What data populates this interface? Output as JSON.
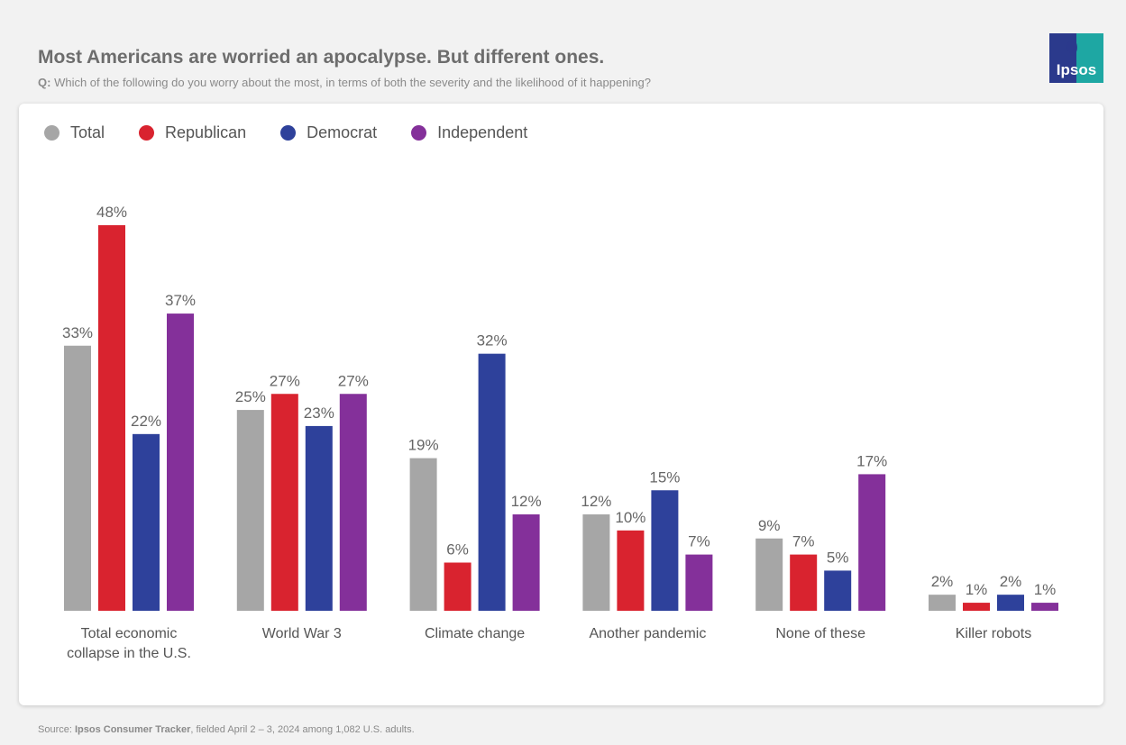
{
  "header": {
    "title": "Most Americans are worried an apocalypse. But different ones.",
    "question_prefix": "Q:",
    "question": "Which of the following do you worry about the most, in terms of both the severity and the likelihood of it happening?"
  },
  "logo": {
    "text": "Ipsos",
    "colors": {
      "left": "#2b3a8c",
      "right": "#1ea7a3"
    }
  },
  "footer": {
    "prefix": "Source: ",
    "source": "Ipsos Consumer Tracker",
    "suffix": ", fielded April 2 – 3, 2024 among 1,082 U.S. adults."
  },
  "chart_data": {
    "type": "bar",
    "categories": [
      [
        "Total economic",
        "collapse in the U.S."
      ],
      [
        "World War 3"
      ],
      [
        "Climate change"
      ],
      [
        "Another pandemic"
      ],
      [
        "None of these"
      ],
      [
        "Killer robots"
      ]
    ],
    "series": [
      {
        "name": "Total",
        "color": "#a6a6a6",
        "values": [
          33,
          25,
          19,
          12,
          9,
          2
        ]
      },
      {
        "name": "Republican",
        "color": "#d9232f",
        "values": [
          48,
          27,
          6,
          10,
          7,
          1
        ]
      },
      {
        "name": "Democrat",
        "color": "#2e419b",
        "values": [
          22,
          23,
          32,
          15,
          5,
          2
        ]
      },
      {
        "name": "Independent",
        "color": "#84309a",
        "values": [
          37,
          27,
          12,
          7,
          17,
          1
        ]
      }
    ],
    "value_suffix": "%",
    "ylim": [
      0,
      48
    ],
    "grid": false,
    "legend_position": "top-left"
  }
}
